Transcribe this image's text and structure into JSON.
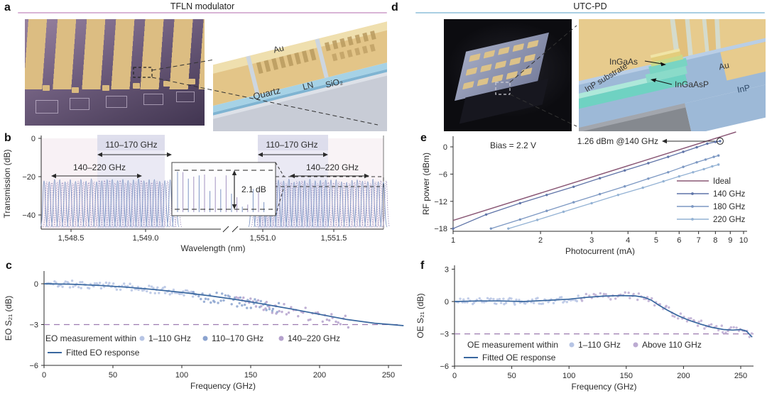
{
  "figure": {
    "panels": {
      "a": {
        "letter": "a",
        "title": "TFLN modulator",
        "accent_color": "#d9b4d6",
        "labels": {
          "au": "Au",
          "quartz": "Quartz",
          "ln": "LN",
          "sio2": "SiO₂"
        }
      },
      "b": {
        "letter": "b"
      },
      "c": {
        "letter": "c"
      },
      "d": {
        "letter": "d",
        "title": "UTC-PD",
        "accent_color": "#a9cfe2",
        "labels": {
          "ingaas": "InGaAs",
          "ingaasp": "InGaAsP",
          "inp_substrate": "InP substrate",
          "au": "Au",
          "inp": "InP"
        }
      },
      "e": {
        "letter": "e"
      },
      "f": {
        "letter": "f"
      }
    }
  },
  "chart_data": [
    {
      "id": "b",
      "type": "line",
      "ylabel": "Transmission (dB)",
      "xlabel": "Wavelength (nm)",
      "ylim": [
        -47,
        0
      ],
      "yticks": [
        "0",
        "−20",
        "−40"
      ],
      "ytick_vals": [
        0,
        -20,
        -40
      ],
      "xtick_labels": [
        "1,548.5",
        "1,549.0",
        "1,551.0",
        "1,551.5"
      ],
      "x_axis_break": true,
      "grid": false,
      "annotations": {
        "left_110_170": "110–170 GHz",
        "left_140_220": "140–220 GHz",
        "right_110_170": "110–170 GHz",
        "right_140_220": "140–220 GHz",
        "inset_depth": "2.1 dB"
      },
      "comb": {
        "peak_top_db": -22,
        "valley_db": -45,
        "spacing_nm": 0.033,
        "left_span_nm": [
          1548.32,
          1549.12
        ],
        "right_span_nm": [
          1550.93,
          1551.72
        ],
        "colors": [
          "#7d95c4",
          "#a393c2"
        ]
      }
    },
    {
      "id": "c",
      "type": "scatter",
      "ylabel": "EO S₂₁ (dB)",
      "xlabel": "Frequency (GHz)",
      "xlim": [
        0,
        262
      ],
      "xticks": [
        0,
        50,
        100,
        150,
        200,
        250
      ],
      "ylim": [
        -6,
        1
      ],
      "yticks": [
        "0",
        "−3",
        "−6"
      ],
      "ytick_vals": [
        0,
        -3,
        -6
      ],
      "ref_line_db": -3,
      "ref_color": "#9d7bb0",
      "grid": false,
      "fit_curve": [
        [
          0,
          0
        ],
        [
          20,
          -0.03
        ],
        [
          40,
          -0.12
        ],
        [
          60,
          -0.25
        ],
        [
          80,
          -0.42
        ],
        [
          100,
          -0.63
        ],
        [
          120,
          -0.88
        ],
        [
          140,
          -1.17
        ],
        [
          160,
          -1.5
        ],
        [
          180,
          -1.86
        ],
        [
          200,
          -2.25
        ],
        [
          220,
          -2.63
        ],
        [
          240,
          -2.9
        ],
        [
          252,
          -3.0
        ],
        [
          261,
          -3.08
        ]
      ],
      "legend": {
        "prefix": "EO measurement within",
        "fit_label": "Fitted EO response",
        "fit_color": "#39679f",
        "series": [
          {
            "label": "1–110 GHz",
            "color": "#b6c4e4"
          },
          {
            "label": "110–170 GHz",
            "color": "#8ba3cf"
          },
          {
            "label": "140–220 GHz",
            "color": "#b4a1cc"
          }
        ]
      },
      "scatter": [
        {
          "range": [
            2,
            110
          ],
          "n": 95,
          "jitter": 0.27,
          "bias": 0,
          "color": "#b6c4e4",
          "seed": 11
        },
        {
          "range": [
            108,
            172
          ],
          "n": 48,
          "jitter": 0.4,
          "bias": -0.1,
          "color": "#8ba3cf",
          "seed": 5
        },
        {
          "range": [
            140,
            222
          ],
          "n": 48,
          "jitter": 0.45,
          "bias": -0.15,
          "color": "#b4a1cc",
          "seed": 9
        }
      ]
    },
    {
      "id": "e",
      "type": "line",
      "ylabel": "RF power (dBm)",
      "xlabel": "Photocurrent (mA)",
      "xscale": "log",
      "xlim": [
        1,
        10
      ],
      "xticks": [
        1,
        2,
        3,
        4,
        5,
        6,
        7,
        8,
        9,
        10
      ],
      "ylim": [
        -18.6,
        3.8
      ],
      "yticks": [
        "0",
        "−6",
        "−12",
        "−18"
      ],
      "ytick_vals": [
        0,
        -6,
        -12,
        -18
      ],
      "annotations": {
        "bias": "Bias = 2.2 V",
        "peak": "1.26 dBm @140 GHz",
        "peak_point_ma": 8.3,
        "peak_point_dbm": 1.26
      },
      "legend": [
        "Ideal",
        "140 GHz",
        "180 GHz",
        "220 GHz"
      ],
      "series": [
        {
          "name": "Ideal",
          "color": "#8a5876",
          "markers": false,
          "points": [
            [
              1,
              -16.2
            ],
            [
              9.42,
              3.28
            ]
          ]
        },
        {
          "name": "140 GHz",
          "color": "#5f74a8",
          "markers": true,
          "endpoint_circle": true,
          "points": [
            [
              1,
              -18
            ],
            [
              1.3,
              -14.9
            ],
            [
              1.7,
              -12.4
            ],
            [
              2.1,
              -10.6
            ],
            [
              2.6,
              -8.8
            ],
            [
              3.2,
              -6.9
            ],
            [
              3.9,
              -5.2
            ],
            [
              4.7,
              -3.6
            ],
            [
              5.5,
              -2.2
            ],
            [
              6.2,
              -1.1
            ],
            [
              6.9,
              -0.1
            ],
            [
              7.5,
              0.7
            ],
            [
              8,
              1.1
            ],
            [
              8.3,
              1.26
            ]
          ]
        },
        {
          "name": "180 GHz",
          "color": "#7b97c2",
          "markers": true,
          "points": [
            [
              1.35,
              -18
            ],
            [
              1.7,
              -16
            ],
            [
              2.1,
              -14.1
            ],
            [
              2.6,
              -12.2
            ],
            [
              3.2,
              -10.4
            ],
            [
              3.9,
              -8.7
            ],
            [
              4.7,
              -7.0
            ],
            [
              5.5,
              -5.6
            ],
            [
              6.2,
              -4.4
            ],
            [
              6.9,
              -3.4
            ],
            [
              7.4,
              -2.8
            ],
            [
              7.9,
              -2.2
            ],
            [
              8.2,
              -1.9
            ]
          ]
        },
        {
          "name": "220 GHz",
          "color": "#93b2d4",
          "markers": true,
          "points": [
            [
              1.55,
              -18
            ],
            [
              1.95,
              -16.1
            ],
            [
              2.4,
              -14.3
            ],
            [
              3,
              -12.4
            ],
            [
              3.7,
              -10.6
            ],
            [
              4.5,
              -9.0
            ],
            [
              5.3,
              -7.6
            ],
            [
              6,
              -6.5
            ],
            [
              6.7,
              -5.6
            ],
            [
              7.3,
              -4.9
            ],
            [
              7.8,
              -4.3
            ],
            [
              8.2,
              -3.9
            ]
          ]
        }
      ]
    },
    {
      "id": "f",
      "type": "scatter",
      "ylabel": "OE S₂₁ (dB)",
      "xlabel": "Frequency (GHz)",
      "xlim": [
        0,
        262
      ],
      "xticks": [
        0,
        50,
        100,
        150,
        200,
        250
      ],
      "ylim": [
        -6,
        3
      ],
      "yticks": [
        "3",
        "0",
        "−3",
        "−6"
      ],
      "ytick_vals": [
        3,
        0,
        -3,
        -6
      ],
      "ref_line_db": -3,
      "ref_color": "#9d7bb0",
      "grid": false,
      "fit_curve": [
        [
          0,
          0
        ],
        [
          20,
          0.05
        ],
        [
          40,
          0.05
        ],
        [
          60,
          0
        ],
        [
          80,
          0.1
        ],
        [
          100,
          0.22
        ],
        [
          115,
          0.38
        ],
        [
          130,
          0.5
        ],
        [
          145,
          0.55
        ],
        [
          158,
          0.52
        ],
        [
          166,
          0.38
        ],
        [
          172,
          0.12
        ],
        [
          178,
          -0.3
        ],
        [
          186,
          -0.8
        ],
        [
          195,
          -1.3
        ],
        [
          205,
          -1.75
        ],
        [
          215,
          -2.1
        ],
        [
          225,
          -2.4
        ],
        [
          235,
          -2.6
        ],
        [
          243,
          -2.65
        ],
        [
          250,
          -2.6
        ],
        [
          255,
          -2.75
        ],
        [
          260,
          -3.3
        ]
      ],
      "legend": {
        "prefix": "OE measurement within",
        "fit_label": "Fitted OE response",
        "fit_color": "#39679f",
        "series": [
          {
            "label": "1–110 GHz",
            "color": "#b6c4e4"
          },
          {
            "label": "Above 110 GHz",
            "color": "#bcabd2"
          }
        ]
      },
      "scatter": [
        {
          "range": [
            2,
            110
          ],
          "n": 72,
          "jitter": 0.3,
          "bias": 0,
          "color": "#b6c4e4",
          "seed": 21
        },
        {
          "range": [
            110,
            261
          ],
          "n": 80,
          "jitter": 0.33,
          "bias": 0,
          "color": "#bcabd2",
          "seed": 4
        }
      ]
    }
  ]
}
